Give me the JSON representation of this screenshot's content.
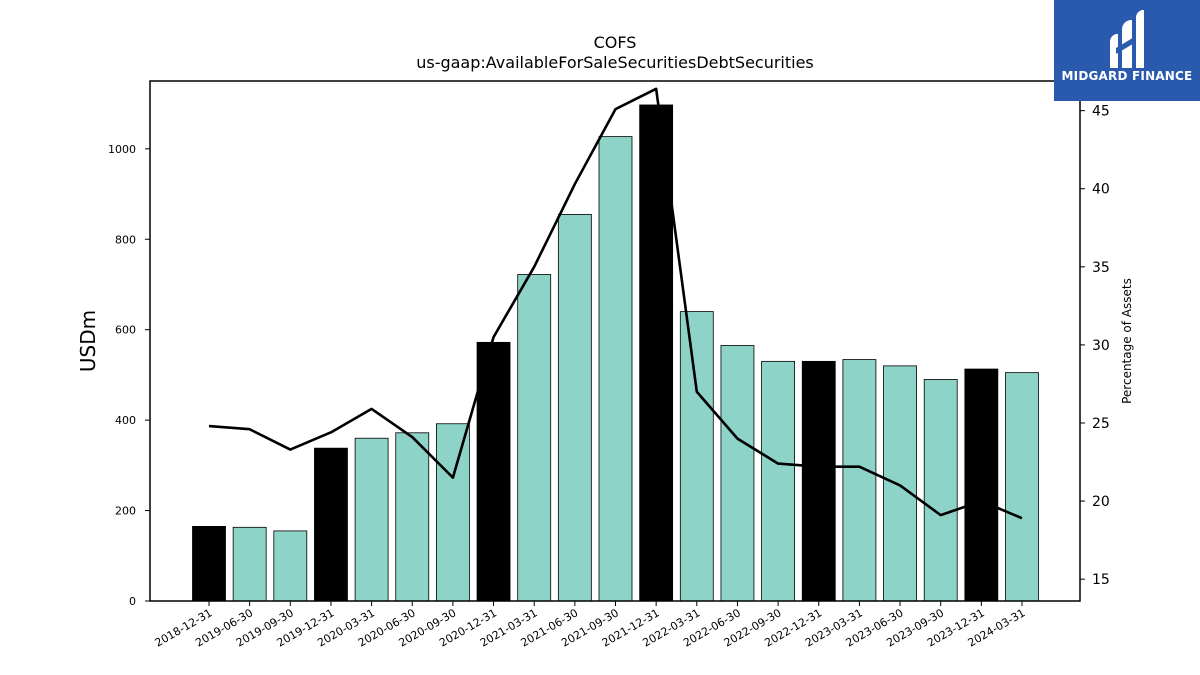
{
  "logo": {
    "text": "MIDGARD FINANCE",
    "color": "#2a5aad"
  },
  "chart_data": {
    "type": "bar",
    "title": "COFS",
    "subtitle": "us-gaap:AvailableForSaleSecuritiesDebtSecurities",
    "ylabel": "USDm",
    "y2label": "Percentage of Assets",
    "ylim": [
      0,
      1150
    ],
    "y2lim": [
      13.6,
      46.9
    ],
    "yticks": [
      0,
      200,
      400,
      600,
      800,
      1000
    ],
    "y2ticks": [
      15,
      20,
      25,
      30,
      35,
      40,
      45
    ],
    "categories": [
      "2018-12-31",
      "2019-06-30",
      "2019-09-30",
      "2019-12-31",
      "2020-03-31",
      "2020-06-30",
      "2020-09-30",
      "2020-12-31",
      "2021-03-31",
      "2021-06-30",
      "2021-09-30",
      "2021-12-31",
      "2022-03-31",
      "2022-06-30",
      "2022-09-30",
      "2022-12-31",
      "2023-03-31",
      "2023-06-30",
      "2023-09-30",
      "2023-12-31",
      "2024-03-31"
    ],
    "series": [
      {
        "type": "bar",
        "values": [
          165,
          163,
          155,
          338,
          360,
          372,
          392,
          572,
          722,
          855,
          1027,
          1097,
          640,
          565,
          530,
          530,
          534,
          520,
          490,
          513,
          505
        ],
        "highlight": [
          true,
          false,
          false,
          true,
          false,
          false,
          false,
          true,
          false,
          false,
          false,
          true,
          false,
          false,
          false,
          true,
          false,
          false,
          false,
          true,
          false
        ],
        "color": "#8dd3c7",
        "highlight_color": "#000000"
      },
      {
        "type": "line",
        "axis": "right",
        "values": [
          24.8,
          24.6,
          23.3,
          24.4,
          25.9,
          24.1,
          21.5,
          30.5,
          35.0,
          40.3,
          45.1,
          46.4,
          27.0,
          24.0,
          22.4,
          22.2,
          22.2,
          21.0,
          19.1,
          20.0,
          18.9
        ],
        "color": "#000000"
      }
    ],
    "grid": false,
    "legend": "none"
  }
}
